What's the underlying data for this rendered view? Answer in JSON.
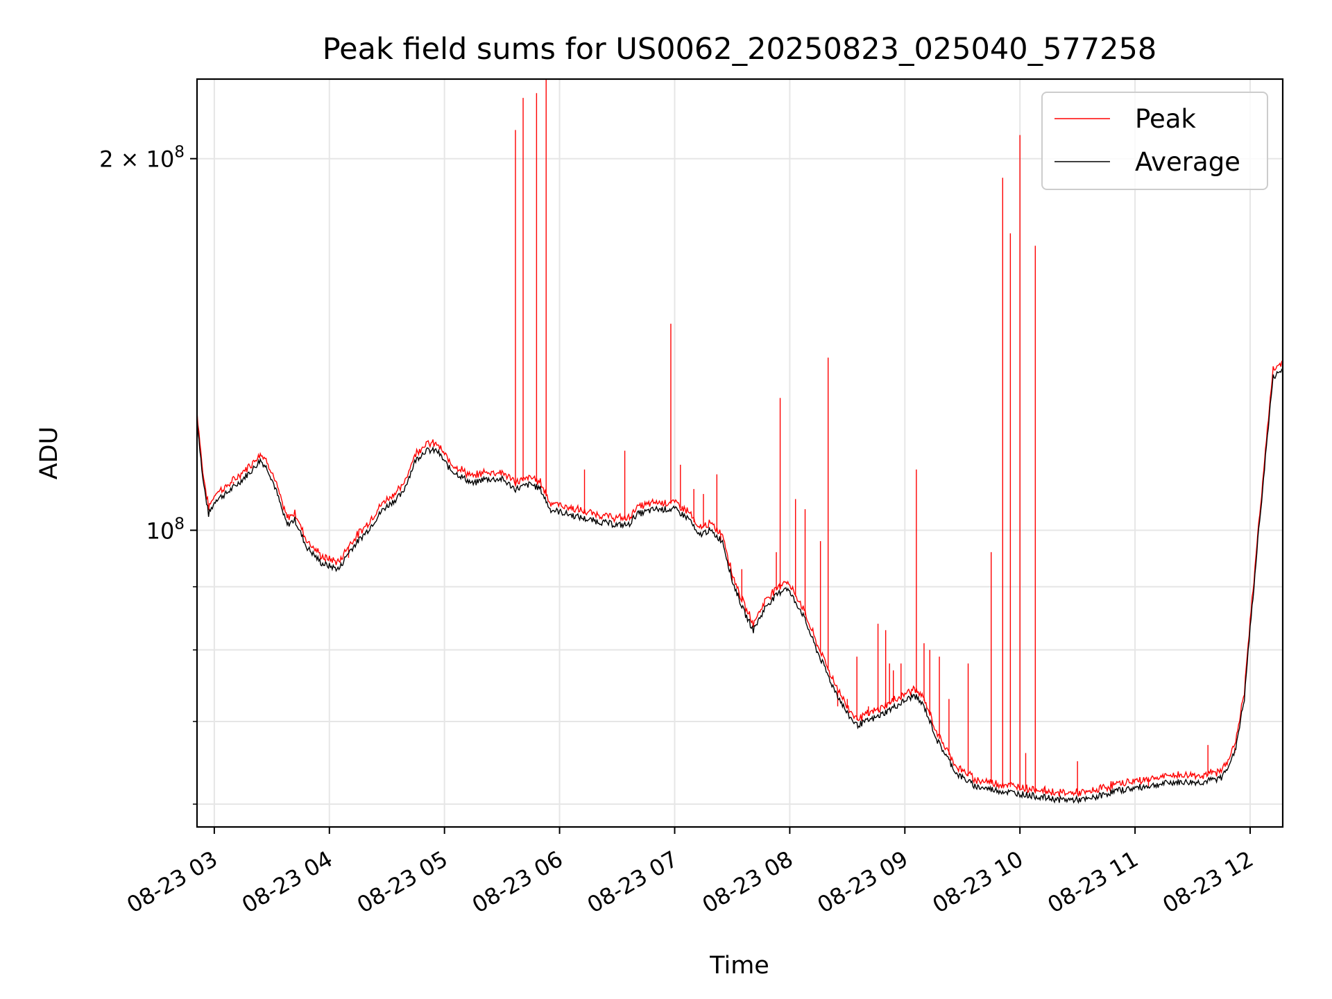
{
  "chart_data": {
    "type": "line",
    "title": "Peak field sums for US0062_20250823_025040_577258",
    "xlabel": "Time",
    "ylabel": "ADU",
    "y_scale": "log",
    "ylim": [
      57500000,
      232000000
    ],
    "xlim": [
      "2025-08-23 02:51",
      "2025-08-23 12:17"
    ],
    "x_ticks": [
      {
        "t": "2025-08-23 03:00",
        "label": "08-23 03"
      },
      {
        "t": "2025-08-23 04:00",
        "label": "08-23 04"
      },
      {
        "t": "2025-08-23 05:00",
        "label": "08-23 05"
      },
      {
        "t": "2025-08-23 06:00",
        "label": "08-23 06"
      },
      {
        "t": "2025-08-23 07:00",
        "label": "08-23 07"
      },
      {
        "t": "2025-08-23 08:00",
        "label": "08-23 08"
      },
      {
        "t": "2025-08-23 09:00",
        "label": "08-23 09"
      },
      {
        "t": "2025-08-23 10:00",
        "label": "08-23 10"
      },
      {
        "t": "2025-08-23 11:00",
        "label": "08-23 11"
      },
      {
        "t": "2025-08-23 12:00",
        "label": "08-23 12"
      }
    ],
    "y_major_ticks": [
      {
        "v": 100000000,
        "label_base": "10",
        "label_exp": "8",
        "label_coef": ""
      },
      {
        "v": 200000000,
        "label_base": "10",
        "label_exp": "8",
        "label_coef": "2 × "
      }
    ],
    "y_minor_ticks": [
      60000000,
      70000000,
      80000000,
      90000000
    ],
    "grid": true,
    "legend_position": "upper-right",
    "series": [
      {
        "name": "Peak",
        "color": "#ff0000",
        "baseline_offset": 1.01,
        "spikes": [
          [
            "2025-08-23 03:10",
            109000000
          ],
          [
            "2025-08-23 03:58",
            94000000
          ],
          [
            "2025-08-23 04:10",
            95000000
          ],
          [
            "2025-08-23 05:37",
            211000000
          ],
          [
            "2025-08-23 05:41",
            224000000
          ],
          [
            "2025-08-23 05:48",
            226000000
          ],
          [
            "2025-08-23 05:53",
            232000000
          ],
          [
            "2025-08-23 06:13",
            112000000
          ],
          [
            "2025-08-23 06:34",
            116000000
          ],
          [
            "2025-08-23 06:58",
            147000000
          ],
          [
            "2025-08-23 07:03",
            113000000
          ],
          [
            "2025-08-23 07:10",
            108000000
          ],
          [
            "2025-08-23 07:15",
            107000000
          ],
          [
            "2025-08-23 07:22",
            111000000
          ],
          [
            "2025-08-23 07:24",
            98000000
          ],
          [
            "2025-08-23 07:30",
            91000000
          ],
          [
            "2025-08-23 07:35",
            93000000
          ],
          [
            "2025-08-23 07:53",
            96000000
          ],
          [
            "2025-08-23 07:55",
            128000000
          ],
          [
            "2025-08-23 08:03",
            106000000
          ],
          [
            "2025-08-23 08:08",
            104000000
          ],
          [
            "2025-08-23 08:16",
            98000000
          ],
          [
            "2025-08-23 08:20",
            138000000
          ],
          [
            "2025-08-23 08:25",
            72000000
          ],
          [
            "2025-08-23 08:30",
            73000000
          ],
          [
            "2025-08-23 08:35",
            79000000
          ],
          [
            "2025-08-23 08:41",
            72000000
          ],
          [
            "2025-08-23 08:46",
            84000000
          ],
          [
            "2025-08-23 08:50",
            83000000
          ],
          [
            "2025-08-23 08:52",
            78000000
          ],
          [
            "2025-08-23 08:54",
            77000000
          ],
          [
            "2025-08-23 08:58",
            78000000
          ],
          [
            "2025-08-23 09:06",
            112000000
          ],
          [
            "2025-08-23 09:10",
            81000000
          ],
          [
            "2025-08-23 09:13",
            80000000
          ],
          [
            "2025-08-23 09:18",
            79000000
          ],
          [
            "2025-08-23 09:23",
            73000000
          ],
          [
            "2025-08-23 09:33",
            78000000
          ],
          [
            "2025-08-23 09:45",
            96000000
          ],
          [
            "2025-08-23 09:51",
            193000000
          ],
          [
            "2025-08-23 09:55",
            174000000
          ],
          [
            "2025-08-23 10:00",
            209000000
          ],
          [
            "2025-08-23 10:03",
            66000000
          ],
          [
            "2025-08-23 10:08",
            170000000
          ],
          [
            "2025-08-23 10:13",
            62000000
          ],
          [
            "2025-08-23 10:30",
            65000000
          ],
          [
            "2025-08-23 11:07",
            62000000
          ],
          [
            "2025-08-23 11:38",
            67000000
          ],
          [
            "2025-08-23 11:52",
            66000000
          ]
        ]
      },
      {
        "name": "Average",
        "color": "#000000",
        "points": [
          [
            "2025-08-23 02:51",
            123000000
          ],
          [
            "2025-08-23 02:54",
            110000000
          ],
          [
            "2025-08-23 02:57",
            103000000
          ],
          [
            "2025-08-23 03:01",
            106000000
          ],
          [
            "2025-08-23 03:06",
            107000000
          ],
          [
            "2025-08-23 03:12",
            109000000
          ],
          [
            "2025-08-23 03:20",
            112000000
          ],
          [
            "2025-08-23 03:24",
            114000000
          ],
          [
            "2025-08-23 03:28",
            112000000
          ],
          [
            "2025-08-23 03:32",
            108000000
          ],
          [
            "2025-08-23 03:36",
            103000000
          ],
          [
            "2025-08-23 03:38",
            101000000
          ],
          [
            "2025-08-23 03:42",
            102000000
          ],
          [
            "2025-08-23 03:48",
            97000000
          ],
          [
            "2025-08-23 03:56",
            94000000
          ],
          [
            "2025-08-23 04:05",
            93000000
          ],
          [
            "2025-08-23 04:10",
            96000000
          ],
          [
            "2025-08-23 04:20",
            100000000
          ],
          [
            "2025-08-23 04:28",
            104000000
          ],
          [
            "2025-08-23 04:38",
            107000000
          ],
          [
            "2025-08-23 04:45",
            114000000
          ],
          [
            "2025-08-23 04:50",
            116000000
          ],
          [
            "2025-08-23 04:56",
            116000000
          ],
          [
            "2025-08-23 05:03",
            112000000
          ],
          [
            "2025-08-23 05:15",
            109000000
          ],
          [
            "2025-08-23 05:20",
            110000000
          ],
          [
            "2025-08-23 05:30",
            110000000
          ],
          [
            "2025-08-23 05:37",
            108000000
          ],
          [
            "2025-08-23 05:45",
            109000000
          ],
          [
            "2025-08-23 05:50",
            108000000
          ],
          [
            "2025-08-23 05:55",
            104000000
          ],
          [
            "2025-08-23 06:05",
            103000000
          ],
          [
            "2025-08-23 06:15",
            102000000
          ],
          [
            "2025-08-23 06:30",
            101000000
          ],
          [
            "2025-08-23 06:36",
            101000000
          ],
          [
            "2025-08-23 06:40",
            103000000
          ],
          [
            "2025-08-23 06:50",
            104000000
          ],
          [
            "2025-08-23 07:00",
            104000000
          ],
          [
            "2025-08-23 07:08",
            102000000
          ],
          [
            "2025-08-23 07:12",
            99000000
          ],
          [
            "2025-08-23 07:18",
            100000000
          ],
          [
            "2025-08-23 07:25",
            98000000
          ],
          [
            "2025-08-23 07:30",
            91000000
          ],
          [
            "2025-08-23 07:36",
            86000000
          ],
          [
            "2025-08-23 07:41",
            83000000
          ],
          [
            "2025-08-23 07:48",
            87000000
          ],
          [
            "2025-08-23 07:58",
            90000000
          ],
          [
            "2025-08-23 08:06",
            86000000
          ],
          [
            "2025-08-23 08:14",
            80000000
          ],
          [
            "2025-08-23 08:22",
            75000000
          ],
          [
            "2025-08-23 08:30",
            71000000
          ],
          [
            "2025-08-23 08:35",
            69500000
          ],
          [
            "2025-08-23 08:45",
            70500000
          ],
          [
            "2025-08-23 08:55",
            72000000
          ],
          [
            "2025-08-23 09:05",
            73500000
          ],
          [
            "2025-08-23 09:10",
            72000000
          ],
          [
            "2025-08-23 09:17",
            67500000
          ],
          [
            "2025-08-23 09:27",
            63500000
          ],
          [
            "2025-08-23 09:37",
            62000000
          ],
          [
            "2025-08-23 09:50",
            61500000
          ],
          [
            "2025-08-23 10:05",
            61000000
          ],
          [
            "2025-08-23 10:20",
            60500000
          ],
          [
            "2025-08-23 10:35",
            60500000
          ],
          [
            "2025-08-23 10:50",
            61500000
          ],
          [
            "2025-08-23 11:05",
            62000000
          ],
          [
            "2025-08-23 11:20",
            62500000
          ],
          [
            "2025-08-23 11:35",
            62500000
          ],
          [
            "2025-08-23 11:45",
            63000000
          ],
          [
            "2025-08-23 11:52",
            66000000
          ],
          [
            "2025-08-23 11:57",
            73000000
          ],
          [
            "2025-08-23 12:02",
            90000000
          ],
          [
            "2025-08-23 12:07",
            110000000
          ],
          [
            "2025-08-23 12:12",
            133000000
          ],
          [
            "2025-08-23 12:17",
            135000000
          ]
        ]
      }
    ]
  }
}
